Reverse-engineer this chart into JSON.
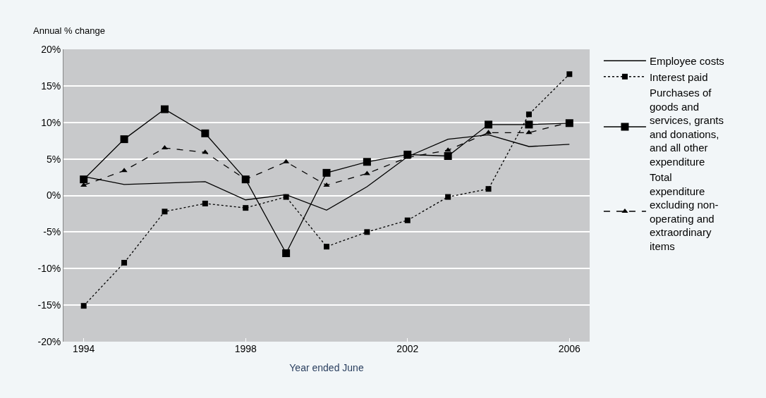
{
  "chart_data": {
    "type": "line",
    "ylabel": "Annual % change",
    "xlabel": "Year ended June",
    "x": [
      1994,
      1995,
      1996,
      1997,
      1998,
      1999,
      2000,
      2001,
      2002,
      2003,
      2004,
      2005,
      2006
    ],
    "xlim": [
      1993.5,
      2006.5
    ],
    "xticks": [
      1994,
      1998,
      2002,
      2006
    ],
    "ylim": [
      -20,
      20
    ],
    "yticks": [
      {
        "value": -20,
        "label": "-20%"
      },
      {
        "value": -15,
        "label": "-15%"
      },
      {
        "value": -10,
        "label": "-10%"
      },
      {
        "value": -5,
        "label": "-5%"
      },
      {
        "value": 0,
        "label": "0%"
      },
      {
        "value": 5,
        "label": "5%"
      },
      {
        "value": 10,
        "label": "10%"
      },
      {
        "value": 15,
        "label": "15%"
      },
      {
        "value": 20,
        "label": "20%"
      }
    ],
    "grid": "y",
    "legend": "right",
    "series": [
      {
        "name": "Employee costs",
        "color": "#000000",
        "marker": "none",
        "line_style": "solid",
        "values": [
          2.6,
          1.5,
          1.7,
          1.9,
          -0.6,
          0.1,
          -2.0,
          1.2,
          5.3,
          7.7,
          8.3,
          6.7,
          7.0
        ]
      },
      {
        "name": "Interest paid",
        "color": "#000000",
        "marker": "square",
        "line_style": "dotted",
        "values": [
          -15.1,
          -9.2,
          -2.2,
          -1.1,
          -1.7,
          -0.2,
          -7.0,
          -5.0,
          -3.4,
          -0.2,
          0.9,
          11.1,
          16.6
        ]
      },
      {
        "name": "Purchases of goods and services, grants and donations, and all other expenditure",
        "color": "#000000",
        "marker": "square",
        "line_style": "solid",
        "values": [
          2.2,
          7.7,
          11.8,
          8.5,
          2.2,
          -7.9,
          3.1,
          4.6,
          5.6,
          5.4,
          9.7,
          9.7,
          9.9
        ]
      },
      {
        "name": "Total expenditure excluding non-operating and extraordinary items",
        "color": "#000000",
        "marker": "triangle",
        "line_style": "dashed",
        "values": [
          1.4,
          3.4,
          6.5,
          5.9,
          2.2,
          4.6,
          1.4,
          3.0,
          5.2,
          6.2,
          8.6,
          8.6,
          10.0
        ]
      }
    ]
  }
}
